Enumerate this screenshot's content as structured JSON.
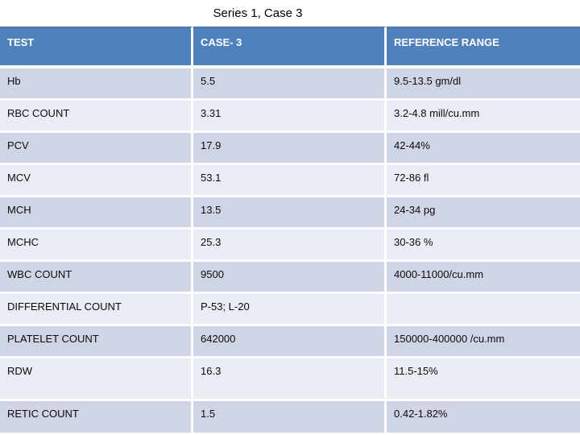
{
  "title": "Series 1, Case 3",
  "table": {
    "headers": [
      "TEST",
      "CASE- 3",
      "REFERENCE RANGE"
    ],
    "rows": [
      {
        "test": "Hb",
        "case": "5.5",
        "ref": "9.5-13.5 gm/dl"
      },
      {
        "test": "RBC COUNT",
        "case": "3.31",
        "ref": "3.2-4.8 mill/cu.mm"
      },
      {
        "test": "PCV",
        "case": "17.9",
        "ref": "42-44%"
      },
      {
        "test": "MCV",
        "case": "53.1",
        "ref": "72-86 fl"
      },
      {
        "test": "MCH",
        "case": "13.5",
        "ref": "24-34 pg"
      },
      {
        "test": "MCHC",
        "case": "25.3",
        "ref": "30-36 %"
      },
      {
        "test": "WBC COUNT",
        "case": "9500",
        "ref": "4000-11000/cu.mm"
      },
      {
        "test": "DIFFERENTIAL COUNT",
        "case": "P-53; L-20",
        "ref": ""
      },
      {
        "test": "PLATELET COUNT",
        "case": "642000",
        "ref": "150000-400000 /cu.mm"
      },
      {
        "test": "RDW",
        "case": "16.3",
        "ref": "11.5-15%"
      },
      {
        "test": "RETIC COUNT",
        "case": "1.5",
        "ref": "0.42-1.82%"
      }
    ],
    "colors": {
      "header_bg": "#4f81bd",
      "band_dark": "#cfd5e4",
      "band_light": "#e9ecf3",
      "header_text": "#ffffff",
      "body_text": "#0b0b0b"
    }
  }
}
